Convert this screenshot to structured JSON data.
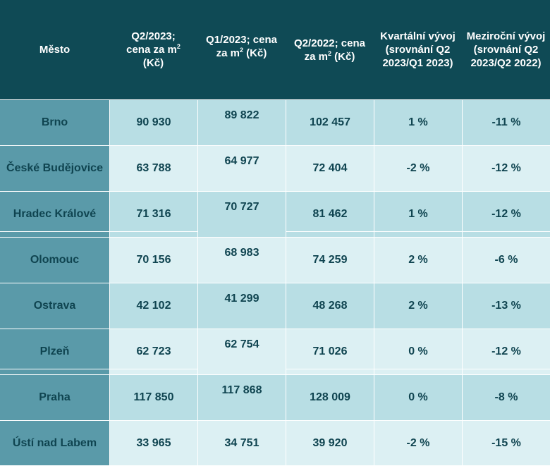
{
  "header": {
    "city": "Město",
    "q2_2023_line1": "Q2/2023;",
    "q2_2023_line2": "cena za m",
    "q2_2023_sup": "2",
    "q2_2023_line3": "(Kč)",
    "q1_2023_line1": "Q1/2023;  cena",
    "q1_2023_line2": "za m",
    "q1_2023_sup": "2",
    "q1_2023_line2b": " (Kč)",
    "q2_2022_line1": "Q2/2022; cena",
    "q2_2022_line2": "za m",
    "q2_2022_sup": "2",
    "q2_2022_line2b": " (Kč)",
    "quarterly": "Kvartální vývoj (srovnání Q2 2023/Q1 2023)",
    "yoy": "Meziroční vývoj (srovnání Q2 2023/Q2 2022)"
  },
  "rows": [
    {
      "city": "Brno",
      "q2_2023": "90 930",
      "q1_2023": "89 822",
      "q2_2022": "102 457",
      "quarterly": "1 %",
      "yoy": "-11 %"
    },
    {
      "city": "České Budějovice",
      "q2_2023": "63 788",
      "q1_2023": "64 977",
      "q2_2022": "72 404",
      "quarterly": "-2 %",
      "yoy": "-12 %"
    },
    {
      "city": "Hradec Králové",
      "q2_2023": "71 316",
      "q1_2023": "70 727",
      "q2_2022": "81 462",
      "quarterly": "1 %",
      "yoy": "-12 %"
    },
    {
      "city": "Olomouc",
      "q2_2023": "70 156",
      "q1_2023": "68 983",
      "q2_2022": "74 259",
      "quarterly": "2 %",
      "yoy": "-6 %"
    },
    {
      "city": "Ostrava",
      "q2_2023": "42 102",
      "q1_2023": "41 299",
      "q2_2022": "48 268",
      "quarterly": "2 %",
      "yoy": "-13 %"
    },
    {
      "city": "Plzeň",
      "q2_2023": "62 723",
      "q1_2023": "62 754",
      "q2_2022": "71 026",
      "quarterly": "0 %",
      "yoy": "-12 %"
    },
    {
      "city": "Praha",
      "q2_2023": "117 850",
      "q1_2023": "117 868",
      "q2_2022": "128 009",
      "quarterly": "0 %",
      "yoy": "-8 %"
    },
    {
      "city": "Ústí nad Labem",
      "q2_2023": "33 965",
      "q1_2023": "34 751",
      "q2_2022": "39 920",
      "quarterly": "-2 %",
      "yoy": "-15 %"
    }
  ]
}
